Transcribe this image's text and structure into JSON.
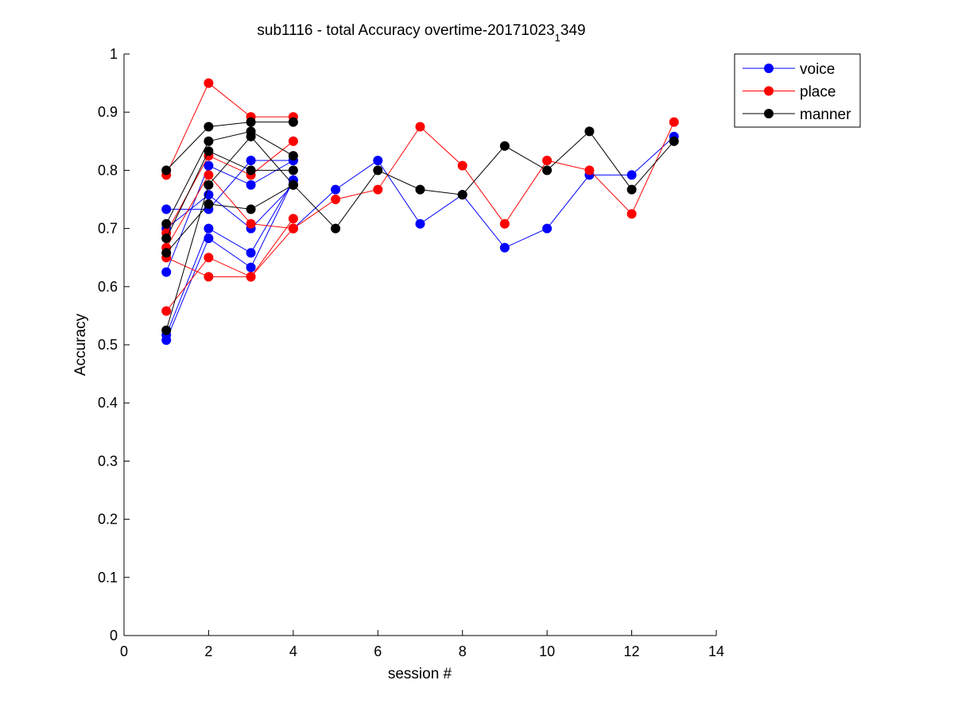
{
  "chart_data": {
    "type": "line",
    "title": "sub1116 - total Accuracy overtime-20171023",
    "title_subscript": "1",
    "title_suffix": "349",
    "xlabel": "session #",
    "ylabel": "Accuracy",
    "xlim": [
      0,
      14
    ],
    "ylim": [
      0,
      1
    ],
    "xticks": [
      0,
      2,
      4,
      6,
      8,
      10,
      12,
      14
    ],
    "yticks": [
      0,
      0.1,
      0.2,
      0.3,
      0.4,
      0.5,
      0.6,
      0.7,
      0.8,
      0.9,
      1
    ],
    "xtick_labels": [
      "0",
      "2",
      "4",
      "6",
      "8",
      "10",
      "12",
      "14"
    ],
    "ytick_labels": [
      "0",
      "0.1",
      "0.2",
      "0.3",
      "0.4",
      "0.5",
      "0.6",
      "0.7",
      "0.8",
      "0.9",
      "1"
    ],
    "grid": false,
    "legend_position": "top-right",
    "legend": [
      {
        "name": "voice",
        "color": "#0000ff"
      },
      {
        "name": "place",
        "color": "#ff0000"
      },
      {
        "name": "manner",
        "color": "#000000"
      }
    ],
    "series": [
      {
        "group": "voice",
        "color": "#0000ff",
        "x": [
          1,
          2,
          3,
          4
        ],
        "y": [
          0.733,
          0.733,
          0.817,
          0.817
        ]
      },
      {
        "group": "voice",
        "color": "#0000ff",
        "x": [
          1,
          2,
          3,
          4
        ],
        "y": [
          0.625,
          0.808,
          0.775,
          0.817
        ]
      },
      {
        "group": "voice",
        "color": "#0000ff",
        "x": [
          1,
          2,
          3,
          4
        ],
        "y": [
          0.508,
          0.683,
          0.633,
          0.783
        ]
      },
      {
        "group": "voice",
        "color": "#0000ff",
        "x": [
          1,
          2,
          3,
          4
        ],
        "y": [
          0.517,
          0.7,
          0.658,
          0.783
        ]
      },
      {
        "group": "voice",
        "color": "#0000ff",
        "x": [
          1,
          2,
          3,
          4
        ],
        "y": [
          0.7,
          0.758,
          0.7,
          0.775
        ]
      },
      {
        "group": "voice",
        "color": "#0000ff",
        "x": [
          4,
          5,
          6,
          7,
          8,
          9,
          10,
          11,
          12,
          13
        ],
        "y": [
          0.7,
          0.767,
          0.817,
          0.708,
          0.758,
          0.667,
          0.7,
          0.792,
          0.792,
          0.858
        ]
      },
      {
        "group": "place",
        "color": "#ff0000",
        "x": [
          1,
          2,
          3,
          4
        ],
        "y": [
          0.792,
          0.95,
          0.892,
          0.892
        ]
      },
      {
        "group": "place",
        "color": "#ff0000",
        "x": [
          1,
          2,
          3,
          4
        ],
        "y": [
          0.692,
          0.825,
          0.792,
          0.85
        ]
      },
      {
        "group": "place",
        "color": "#ff0000",
        "x": [
          1,
          2,
          3,
          4
        ],
        "y": [
          0.558,
          0.65,
          0.617,
          0.717
        ]
      },
      {
        "group": "place",
        "color": "#ff0000",
        "x": [
          1,
          2,
          3,
          4
        ],
        "y": [
          0.65,
          0.617,
          0.617,
          0.7
        ]
      },
      {
        "group": "place",
        "color": "#ff0000",
        "x": [
          1,
          2,
          3,
          4
        ],
        "y": [
          0.667,
          0.792,
          0.708,
          0.7
        ]
      },
      {
        "group": "place",
        "color": "#ff0000",
        "x": [
          4,
          5,
          6,
          7,
          8,
          9,
          10,
          11,
          12,
          13
        ],
        "y": [
          0.7,
          0.75,
          0.767,
          0.875,
          0.808,
          0.708,
          0.817,
          0.8,
          0.725,
          0.883
        ]
      },
      {
        "group": "manner",
        "color": "#000000",
        "x": [
          1,
          2,
          3,
          4
        ],
        "y": [
          0.8,
          0.875,
          0.883,
          0.883
        ]
      },
      {
        "group": "manner",
        "color": "#000000",
        "x": [
          1,
          2,
          3,
          4
        ],
        "y": [
          0.708,
          0.85,
          0.867,
          0.825
        ]
      },
      {
        "group": "manner",
        "color": "#000000",
        "x": [
          1,
          2,
          3,
          4
        ],
        "y": [
          0.683,
          0.833,
          0.8,
          0.8
        ]
      },
      {
        "group": "manner",
        "color": "#000000",
        "x": [
          1,
          2,
          3,
          4
        ],
        "y": [
          0.658,
          0.742,
          0.733,
          0.775
        ]
      },
      {
        "group": "manner",
        "color": "#000000",
        "x": [
          1,
          2,
          3,
          4
        ],
        "y": [
          0.525,
          0.775,
          0.858,
          0.775
        ]
      },
      {
        "group": "manner",
        "color": "#000000",
        "x": [
          4,
          5,
          6,
          7,
          8,
          9,
          10,
          11,
          12,
          13
        ],
        "y": [
          0.775,
          0.7,
          0.8,
          0.767,
          0.758,
          0.842,
          0.8,
          0.867,
          0.767,
          0.85
        ]
      }
    ]
  }
}
